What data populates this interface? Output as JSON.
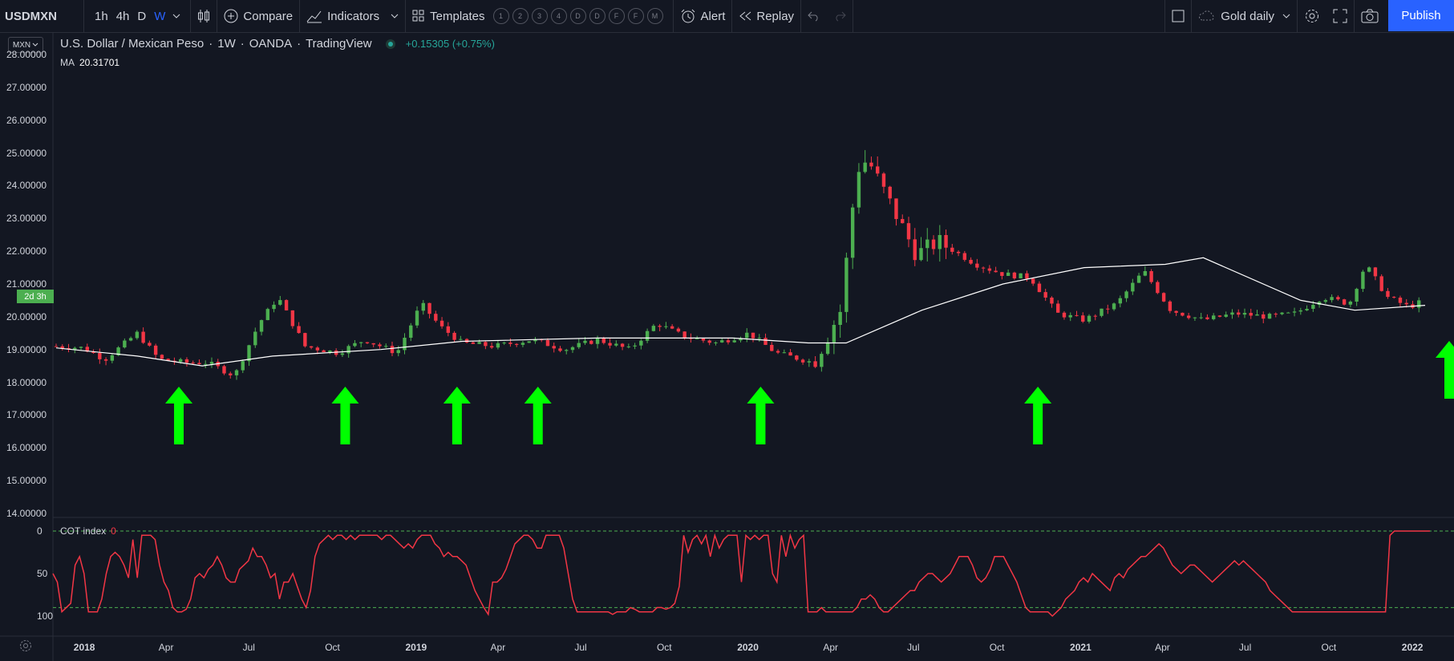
{
  "toolbar": {
    "symbol": "USDMXN",
    "timeframes": [
      "1h",
      "4h",
      "D",
      "W"
    ],
    "active_timeframe": "W",
    "compare_label": "Compare",
    "indicators_label": "Indicators",
    "templates_label": "Templates",
    "template_slots": [
      "1",
      "2",
      "3",
      "4",
      "D",
      "D",
      "F",
      "F",
      "M"
    ],
    "alert_label": "Alert",
    "replay_label": "Replay",
    "layout_name": "Gold daily",
    "publish_label": "Publish"
  },
  "legend": {
    "title": "U.S. Dollar / Mexican Peso",
    "interval": "1W",
    "broker": "OANDA",
    "source": "TradingView",
    "change": "+0.15305 (+0.75%)",
    "ma_label": "MA",
    "ma_value": "20.31701"
  },
  "price_scale": {
    "currency_button": "MXN",
    "countdown": "2d 3h",
    "ticks": [
      "28.00000",
      "27.00000",
      "26.00000",
      "25.00000",
      "24.00000",
      "23.00000",
      "22.00000",
      "21.00000",
      "20.00000",
      "19.00000",
      "18.00000",
      "17.00000",
      "16.00000",
      "15.00000",
      "14.00000"
    ]
  },
  "cot_panel": {
    "label": "COT index",
    "value": "0",
    "ticks": [
      "0",
      "50",
      "100"
    ]
  },
  "time_axis": {
    "labels": [
      {
        "text": "2018",
        "bold": true
      },
      {
        "text": "Apr",
        "bold": false
      },
      {
        "text": "Jul",
        "bold": false
      },
      {
        "text": "Oct",
        "bold": false
      },
      {
        "text": "2019",
        "bold": true
      },
      {
        "text": "Apr",
        "bold": false
      },
      {
        "text": "Jul",
        "bold": false
      },
      {
        "text": "Oct",
        "bold": false
      },
      {
        "text": "2020",
        "bold": true
      },
      {
        "text": "Apr",
        "bold": false
      },
      {
        "text": "Jul",
        "bold": false
      },
      {
        "text": "Oct",
        "bold": false
      },
      {
        "text": "2021",
        "bold": true
      },
      {
        "text": "Apr",
        "bold": false
      },
      {
        "text": "Jul",
        "bold": false
      },
      {
        "text": "Oct",
        "bold": false
      },
      {
        "text": "2022",
        "bold": true
      }
    ]
  },
  "colors": {
    "up": "#4caf50",
    "down": "#f23645",
    "ma": "#ffffff",
    "cot": "#f23645",
    "cot_levels": "#4caf50",
    "arrow": "#00ff00",
    "accent": "#2962ff"
  },
  "chart_data": {
    "type": "candlestick",
    "symbol": "USDMXN",
    "interval": "1W",
    "ylim": [
      14,
      28
    ],
    "start": "2017-12",
    "end": "2022-01",
    "close_path": [
      [
        0,
        19.1
      ],
      [
        10,
        19.05
      ],
      [
        18,
        18.7
      ],
      [
        30,
        19.5
      ],
      [
        38,
        18.7
      ],
      [
        48,
        18.6
      ],
      [
        56,
        18.6
      ],
      [
        66,
        18.2
      ],
      [
        75,
        19.8
      ],
      [
        82,
        20.6
      ],
      [
        92,
        19.1
      ],
      [
        104,
        18.9
      ],
      [
        114,
        19.3
      ],
      [
        126,
        18.9
      ],
      [
        135,
        20.4
      ],
      [
        142,
        19.7
      ],
      [
        150,
        19.2
      ],
      [
        162,
        19.1
      ],
      [
        176,
        19.3
      ],
      [
        188,
        19.0
      ],
      [
        200,
        19.3
      ],
      [
        212,
        19.0
      ],
      [
        222,
        19.8
      ],
      [
        232,
        19.4
      ],
      [
        244,
        19.2
      ],
      [
        256,
        19.5
      ],
      [
        266,
        18.9
      ],
      [
        280,
        18.6
      ],
      [
        290,
        20.2
      ],
      [
        296,
        24.5
      ],
      [
        300,
        24.8
      ],
      [
        308,
        23.5
      ],
      [
        318,
        21.9
      ],
      [
        326,
        22.3
      ],
      [
        340,
        21.6
      ],
      [
        350,
        21.3
      ],
      [
        360,
        21.2
      ],
      [
        370,
        20.1
      ],
      [
        380,
        19.9
      ],
      [
        392,
        20.4
      ],
      [
        402,
        21.4
      ],
      [
        412,
        20.2
      ],
      [
        424,
        19.9
      ],
      [
        436,
        20.1
      ],
      [
        448,
        20.0
      ],
      [
        458,
        20.1
      ],
      [
        468,
        20.6
      ],
      [
        478,
        20.4
      ],
      [
        484,
        21.6
      ],
      [
        492,
        20.6
      ],
      [
        500,
        20.3
      ],
      [
        506,
        20.5
      ]
    ],
    "ma_path": [
      [
        0,
        19.05
      ],
      [
        30,
        18.8
      ],
      [
        54,
        18.5
      ],
      [
        80,
        18.8
      ],
      [
        120,
        19.0
      ],
      [
        150,
        19.25
      ],
      [
        200,
        19.35
      ],
      [
        250,
        19.35
      ],
      [
        278,
        19.2
      ],
      [
        292,
        19.2
      ],
      [
        320,
        20.2
      ],
      [
        350,
        21.0
      ],
      [
        380,
        21.5
      ],
      [
        410,
        21.6
      ],
      [
        424,
        21.8
      ],
      [
        460,
        20.5
      ],
      [
        480,
        20.2
      ],
      [
        506,
        20.35
      ]
    ],
    "cot_index": [
      50,
      60,
      95,
      90,
      85,
      40,
      30,
      50,
      95,
      95,
      95,
      80,
      50,
      30,
      25,
      30,
      40,
      55,
      10,
      55,
      5,
      5,
      5,
      10,
      40,
      60,
      70,
      90,
      95,
      95,
      92,
      80,
      55,
      50,
      55,
      45,
      40,
      30,
      40,
      55,
      60,
      60,
      45,
      40,
      35,
      20,
      30,
      30,
      40,
      55,
      50,
      80,
      60,
      60,
      50,
      65,
      80,
      90,
      70,
      30,
      15,
      10,
      5,
      10,
      5,
      5,
      10,
      5,
      10,
      5,
      5,
      5,
      5,
      5,
      10,
      5,
      5,
      10,
      15,
      20,
      15,
      20,
      10,
      5,
      5,
      5,
      15,
      20,
      30,
      25,
      30,
      30,
      35,
      40,
      55,
      70,
      80,
      90,
      98,
      60,
      60,
      55,
      45,
      30,
      15,
      10,
      5,
      5,
      10,
      20,
      20,
      5,
      5,
      5,
      5,
      20,
      50,
      80,
      95,
      95,
      95,
      95,
      95,
      95,
      95,
      95,
      98,
      95,
      95,
      95,
      90,
      92,
      95,
      95,
      95,
      95,
      90,
      90,
      92,
      90,
      85,
      65,
      5,
      25,
      10,
      5,
      15,
      5,
      30,
      5,
      20,
      10,
      5,
      5,
      5,
      60,
      5,
      10,
      5,
      10,
      5,
      5,
      50,
      60,
      5,
      30,
      5,
      20,
      10,
      5,
      95,
      95,
      95,
      90,
      95,
      95,
      95,
      95,
      95,
      95,
      95,
      90,
      80,
      80,
      75,
      80,
      90,
      95,
      95,
      90,
      85,
      80,
      75,
      70,
      70,
      60,
      55,
      50,
      50,
      55,
      60,
      55,
      50,
      40,
      30,
      30,
      30,
      40,
      55,
      60,
      55,
      45,
      30,
      30,
      30,
      40,
      50,
      60,
      75,
      90,
      95,
      95,
      95,
      95,
      95,
      100,
      95,
      90,
      80,
      75,
      70,
      60,
      55,
      60,
      50,
      55,
      60,
      65,
      70,
      55,
      50,
      55,
      45,
      40,
      35,
      30,
      30,
      25,
      20,
      15,
      20,
      30,
      40,
      45,
      50,
      45,
      40,
      40,
      45,
      50,
      55,
      60,
      55,
      50,
      45,
      40,
      35,
      40,
      35,
      40,
      45,
      50,
      55,
      60,
      70,
      75,
      80,
      85,
      90,
      95,
      95,
      95,
      95,
      95,
      95,
      95,
      95,
      95,
      95,
      95,
      95,
      95,
      95,
      95,
      95,
      95,
      95,
      95,
      95,
      95,
      95,
      5,
      0,
      0,
      0,
      0,
      0,
      0,
      0,
      0,
      0
    ],
    "cot_ylim": [
      0,
      100
    ],
    "cot_levels": [
      0,
      90
    ],
    "signals": [
      "2018-04",
      "2018-10",
      "2019-02",
      "2019-05",
      "2020-01",
      "2020-11",
      "2022-01"
    ]
  }
}
